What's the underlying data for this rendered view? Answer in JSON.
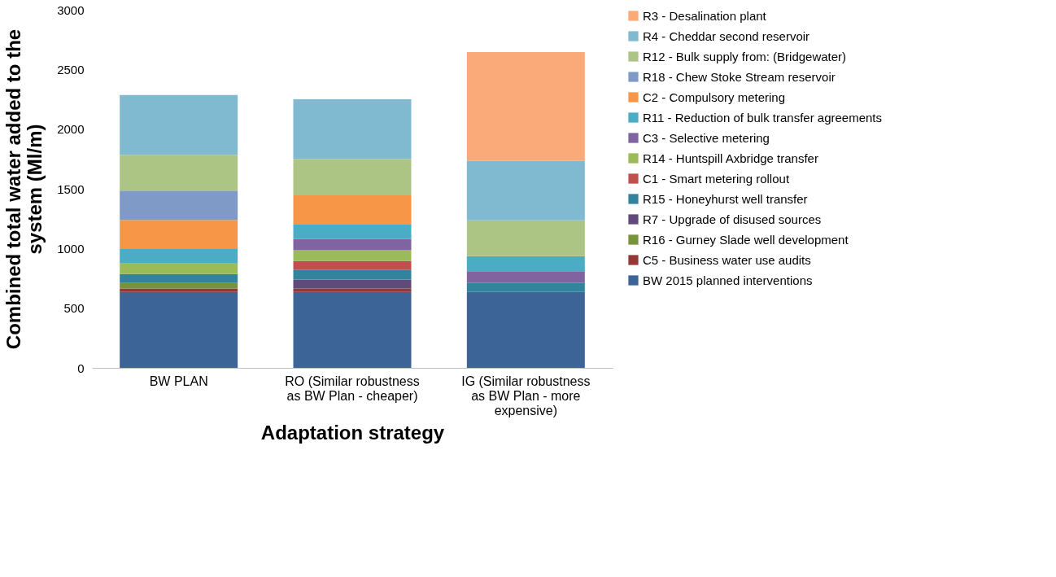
{
  "chart_data": {
    "type": "bar",
    "stacked": true,
    "xlabel": "Adaptation strategy",
    "ylabel": "Combined total water added to the system (Ml/m)",
    "categories": [
      "BW PLAN",
      "RO (Similar robustness as BW Plan - cheaper)",
      "IG (Similar robustness as BW Plan - more expensive)"
    ],
    "ylim": [
      0,
      3000
    ],
    "yticks": [
      0,
      500,
      1000,
      1500,
      2000,
      2500,
      3000
    ],
    "grid": false,
    "legend": "right",
    "series": [
      {
        "name": "BW 2015 planned interventions",
        "color": "#3c6496",
        "values": [
          635,
          635,
          635
        ]
      },
      {
        "name": "C5 - Business water use audits",
        "color": "#953735",
        "values": [
          30,
          30,
          null
        ]
      },
      {
        "name": "R16 - Gurney Slade well development",
        "color": "#77933c",
        "values": [
          45,
          null,
          null
        ]
      },
      {
        "name": "R7 - Upgrade of disused sources",
        "color": "#604a7b",
        "values": [
          null,
          75,
          null
        ]
      },
      {
        "name": "R15 - Honeyhurst well transfer",
        "color": "#31849b",
        "values": [
          75,
          80,
          75
        ]
      },
      {
        "name": "C1 - Smart metering rollout",
        "color": "#c0504d",
        "values": [
          null,
          75,
          null
        ]
      },
      {
        "name": "R14 - Huntspill Axbridge transfer",
        "color": "#9bbb59",
        "values": [
          90,
          90,
          null
        ]
      },
      {
        "name": "C3 - Selective metering",
        "color": "#8064a2",
        "values": [
          null,
          95,
          100
        ]
      },
      {
        "name": "R11 - Reduction of bulk transfer agreements",
        "color": "#4bacc6",
        "values": [
          120,
          125,
          125
        ]
      },
      {
        "name": "C2 - Compulsory metering",
        "color": "#f79646",
        "values": [
          245,
          240,
          null
        ]
      },
      {
        "name": "R18 - Chew Stoke Stream reservoir",
        "color": "#7f9ac6",
        "values": [
          245,
          null,
          null
        ]
      },
      {
        "name": "R12 - Bulk supply from: (Bridgewater)",
        "color": "#adc584",
        "values": [
          300,
          305,
          300
        ]
      },
      {
        "name": "R4 - Cheddar second reservoir",
        "color": "#7fbad0",
        "values": [
          500,
          500,
          500
        ]
      },
      {
        "name": "R3 - Desalination plant",
        "color": "#f9aa78",
        "values": [
          null,
          null,
          910
        ]
      }
    ]
  }
}
